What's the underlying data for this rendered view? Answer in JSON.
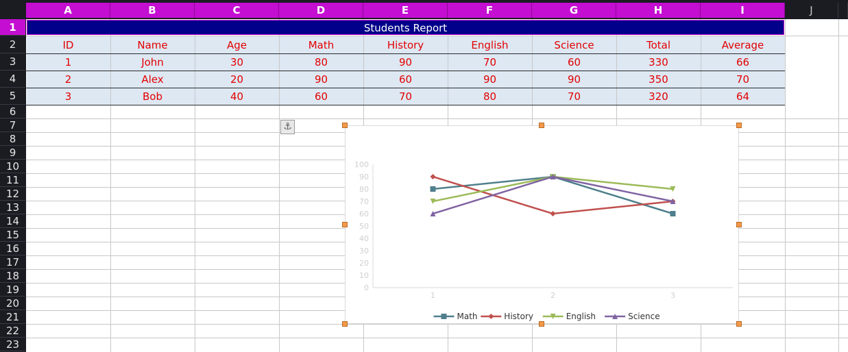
{
  "column_headers": [
    "A",
    "B",
    "C",
    "D",
    "E",
    "F",
    "G",
    "H",
    "I",
    "J"
  ],
  "row_headers": [
    "1",
    "2",
    "3",
    "4",
    "5",
    "6",
    "7",
    "8",
    "9",
    "10",
    "11",
    "12",
    "13",
    "14",
    "15",
    "16",
    "17",
    "18",
    "19",
    "20",
    "21",
    "22",
    "23"
  ],
  "sheet": {
    "title": "Students Report",
    "headers": [
      "ID",
      "Name",
      "Age",
      "Math",
      "History",
      "English",
      "Science",
      "Total",
      "Average"
    ],
    "rows": [
      [
        "1",
        "John",
        "30",
        "80",
        "90",
        "70",
        "60",
        "330",
        "66"
      ],
      [
        "2",
        "Alex",
        "20",
        "90",
        "60",
        "90",
        "90",
        "350",
        "70"
      ],
      [
        "3",
        "Bob",
        "40",
        "60",
        "70",
        "80",
        "70",
        "320",
        "64"
      ]
    ]
  },
  "colors": {
    "selection": "#c40ed1",
    "title_fill": "#01008a",
    "table_fill": "#dde8f3",
    "cell_text": "#e20000",
    "handle": "#f39a4a"
  },
  "chart_data": {
    "type": "line",
    "categories": [
      "1",
      "2",
      "3"
    ],
    "series": [
      {
        "name": "Math",
        "values": [
          80,
          90,
          60
        ],
        "color": "#4f7f8c",
        "marker": "square"
      },
      {
        "name": "History",
        "values": [
          90,
          60,
          70
        ],
        "color": "#c0504d",
        "marker": "diamond"
      },
      {
        "name": "English",
        "values": [
          70,
          90,
          80
        ],
        "color": "#9bbb59",
        "marker": "triangle-down"
      },
      {
        "name": "Science",
        "values": [
          60,
          90,
          70
        ],
        "color": "#8064a2",
        "marker": "triangle-up"
      }
    ],
    "yticks": [
      "0",
      "10",
      "20",
      "30",
      "40",
      "50",
      "60",
      "70",
      "80",
      "90",
      "100"
    ],
    "ylim": [
      0,
      100
    ],
    "legend": "bottom",
    "grid": false
  },
  "anchor_icon": "anchor-icon"
}
